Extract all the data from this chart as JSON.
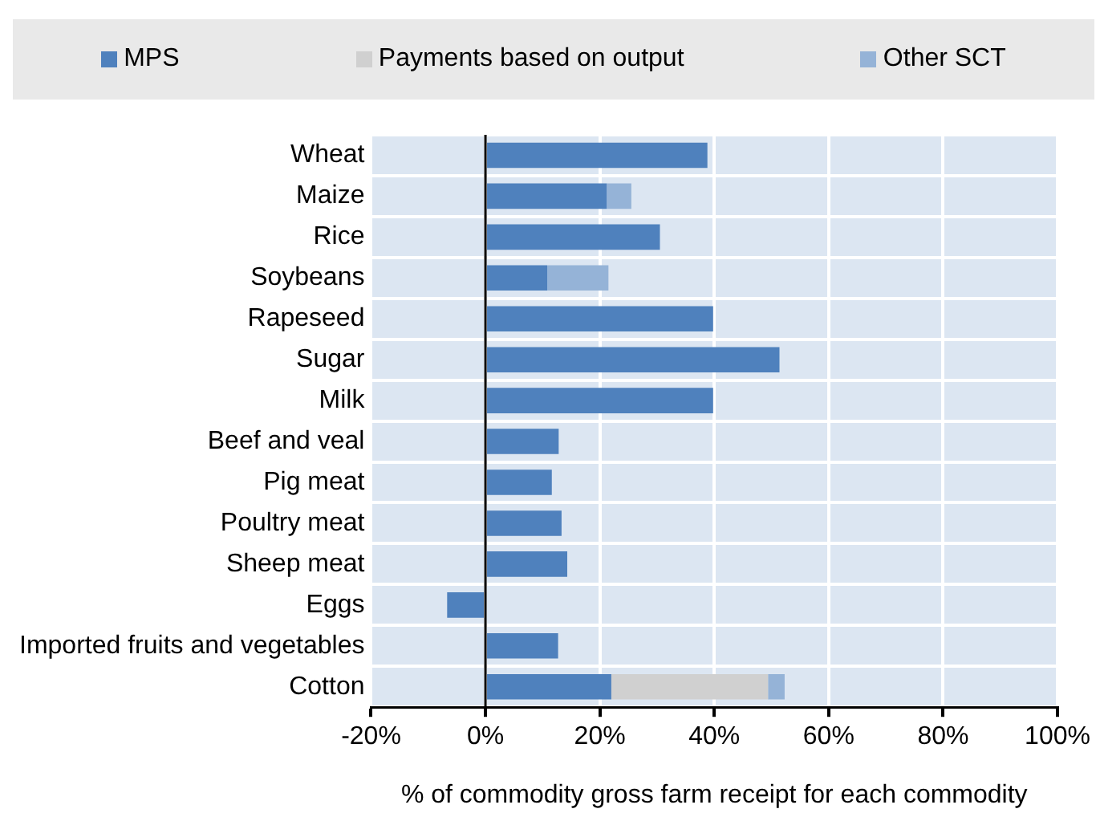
{
  "chart_data": {
    "type": "bar",
    "orientation": "horizontal",
    "stacked": true,
    "xlabel": "% of commodity gross farm receipt for each commodity",
    "categories": [
      "Wheat",
      "Maize",
      "Rice",
      "Soybeans",
      "Rapeseed",
      "Sugar",
      "Milk",
      "Beef and veal",
      "Pig meat",
      "Poultry meat",
      "Sheep meat",
      "Eggs",
      "Imported fruits and vegetables",
      "Cotton"
    ],
    "series": [
      {
        "name": "MPS",
        "color": "#4f81bd",
        "values": [
          38.8,
          21.2,
          30.5,
          10.8,
          39.8,
          51.4,
          39.8,
          12.8,
          11.6,
          13.3,
          14.3,
          -6.7,
          12.7,
          22
        ]
      },
      {
        "name": "Payments based on output",
        "color": "#d0d0d0",
        "values": [
          null,
          null,
          null,
          null,
          null,
          null,
          null,
          null,
          null,
          null,
          null,
          null,
          null,
          27.4
        ]
      },
      {
        "name": "Other SCT",
        "color": "#95b3d7",
        "values": [
          null,
          4.3,
          null,
          10.7,
          null,
          null,
          null,
          null,
          null,
          null,
          null,
          null,
          null,
          2.9
        ]
      }
    ],
    "xlim": [
      -20,
      100
    ],
    "xticks": [
      {
        "value": -20,
        "label": "-20%"
      },
      {
        "value": 0,
        "label": "0%"
      },
      {
        "value": 20,
        "label": "20%"
      },
      {
        "value": 40,
        "label": "40%"
      },
      {
        "value": 60,
        "label": "60%"
      },
      {
        "value": 80,
        "label": "80%"
      },
      {
        "value": 100,
        "label": "100%"
      }
    ],
    "grid": true,
    "legend": "top"
  }
}
